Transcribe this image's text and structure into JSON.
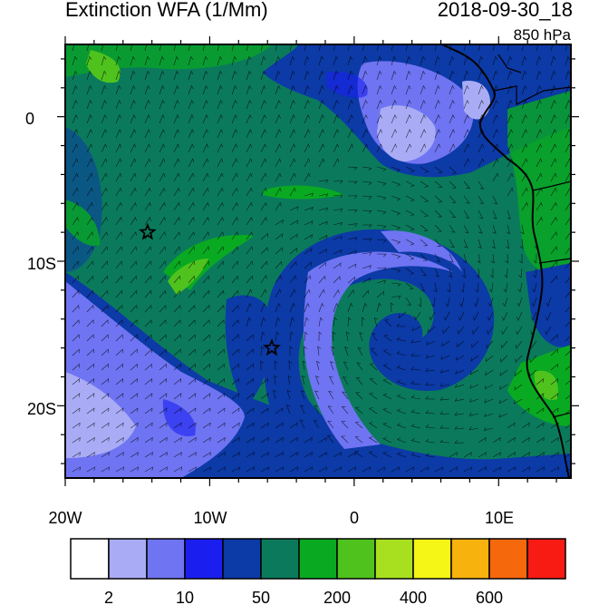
{
  "title": "Extinction WFA (1/Mm)",
  "datetime": "2018-09-30_18",
  "level": "850 hPa",
  "lon_labels": [
    "20W",
    "10W",
    "0",
    "10E"
  ],
  "lat_labels": [
    "0",
    "10S",
    "20S"
  ],
  "colorbar": {
    "colors": [
      "#ffffff",
      "#a9acf5",
      "#6f74f2",
      "#1a1ff0",
      "#0c3aa6",
      "#0b7a5c",
      "#09aa21",
      "#4fc21e",
      "#a8e020",
      "#f5f516",
      "#f8b20e",
      "#f6680c",
      "#f71b14"
    ],
    "labels": [
      "2",
      "10",
      "50",
      "200",
      "400",
      "600"
    ]
  },
  "markers": [
    {
      "name": "star-marker-west",
      "lon": -14.3,
      "lat": -8.0
    },
    {
      "name": "star-marker-center",
      "lon": -5.7,
      "lat": -16.0
    }
  ],
  "map_extent": {
    "lon_min": -20,
    "lon_max": 15,
    "lat_min": -25,
    "lat_max": 5
  }
}
